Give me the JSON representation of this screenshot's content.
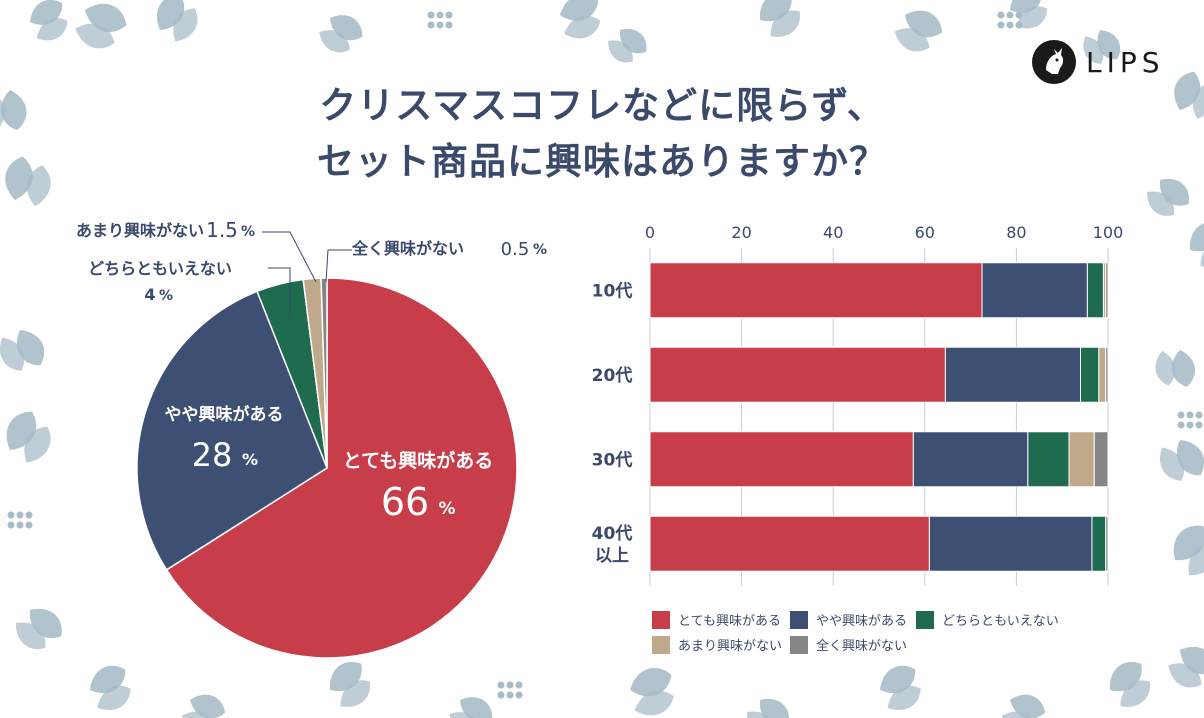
{
  "title_line1": "クリスマスコフレなどに限らず、",
  "title_line2": "セット商品に興味はありますか？",
  "brand": "LIPS",
  "colors": {
    "very": "#c73e4a",
    "somewhat": "#3d4f72",
    "neutral": "#1f6b4f",
    "notmuch": "#bfa98a",
    "none": "#858585",
    "text": "#3b4a6b",
    "leaf": "#a8bcc8"
  },
  "chart_data": [
    {
      "type": "pie",
      "slices": [
        {
          "name": "とても興味がある",
          "value": 66,
          "label": "66",
          "unit": "%"
        },
        {
          "name": "やや興味がある",
          "value": 28,
          "label": "28",
          "unit": "%"
        },
        {
          "name": "どちらともいえない",
          "value": 4,
          "label": "4",
          "unit": "%"
        },
        {
          "name": "あまり興味がない",
          "value": 1.5,
          "label": "1.5",
          "unit": "%"
        },
        {
          "name": "全く興味がない",
          "value": 0.5,
          "label": "0.5",
          "unit": "%"
        }
      ]
    },
    {
      "type": "bar",
      "orientation": "horizontal",
      "stacked": true,
      "categories": [
        "10代",
        "20代",
        "30代",
        "40代\n以上"
      ],
      "xlim": [
        0,
        100
      ],
      "ticks": [
        0,
        20,
        40,
        60,
        80,
        100
      ],
      "grid": true,
      "legend_position": "bottom",
      "series": [
        {
          "name": "とても興味がある",
          "values": [
            72.5,
            64.5,
            57.5,
            61
          ]
        },
        {
          "name": "やや興味がある",
          "values": [
            23,
            29.5,
            25,
            35.5
          ]
        },
        {
          "name": "どちらともいえない",
          "values": [
            3.5,
            4,
            9,
            3
          ]
        },
        {
          "name": "あまり興味がない",
          "values": [
            0.5,
            1.5,
            5.5,
            0
          ]
        },
        {
          "name": "全く興味がない",
          "values": [
            0.5,
            0.5,
            3,
            0.5
          ]
        }
      ]
    }
  ]
}
